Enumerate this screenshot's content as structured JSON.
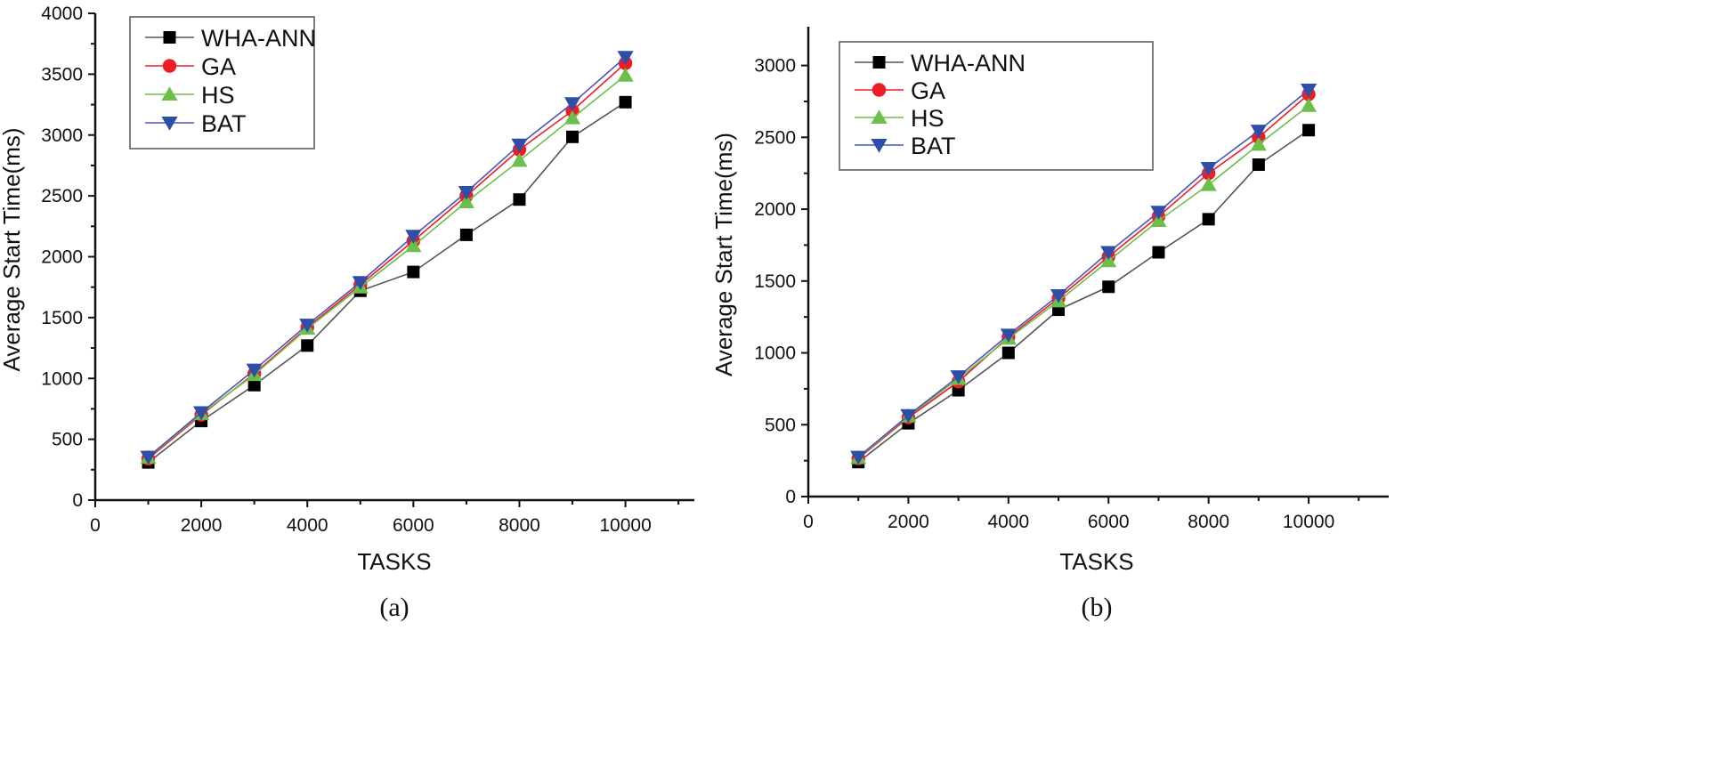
{
  "chart_data": [
    {
      "type": "line",
      "caption": "(a)",
      "xlabel": "TASKS",
      "ylabel": "Average Start Time(ms)",
      "xlim": [
        0,
        11300
      ],
      "ylim": [
        0,
        4000
      ],
      "xticks": [
        0,
        2000,
        4000,
        6000,
        8000,
        10000
      ],
      "yticks": [
        0,
        500,
        1000,
        1500,
        2000,
        2500,
        3000,
        3500,
        4000
      ],
      "legend_position": "top-left",
      "grid": false,
      "x": [
        1000,
        2000,
        3000,
        4000,
        5000,
        6000,
        7000,
        8000,
        9000,
        10000
      ],
      "series": [
        {
          "name": "WHA-ANN",
          "marker": "square",
          "color": "#000000",
          "line_color": "#555555",
          "values": [
            310,
            650,
            945,
            1270,
            1720,
            1875,
            2180,
            2470,
            2985,
            3270
          ]
        },
        {
          "name": "GA",
          "marker": "circle",
          "color": "#ee1c25",
          "line_color": "#ee1c25",
          "values": [
            340,
            700,
            1040,
            1420,
            1770,
            2130,
            2500,
            2880,
            3200,
            3590
          ]
        },
        {
          "name": "HS",
          "marker": "triangle-up",
          "color": "#6cbf4a",
          "line_color": "#6cbf4a",
          "values": [
            350,
            710,
            1030,
            1410,
            1750,
            2090,
            2450,
            2790,
            3140,
            3490
          ]
        },
        {
          "name": "BAT",
          "marker": "triangle-down",
          "color": "#2e4fa8",
          "line_color": "#4a55b8",
          "values": [
            355,
            720,
            1070,
            1440,
            1790,
            2170,
            2530,
            2920,
            3260,
            3640
          ]
        }
      ]
    },
    {
      "type": "line",
      "caption": "(b)",
      "xlabel": "TASKS",
      "ylabel": "Average Start Time(ms)",
      "xlim": [
        0,
        11600
      ],
      "ylim": [
        0,
        3270
      ],
      "xticks": [
        0,
        2000,
        4000,
        6000,
        8000,
        10000
      ],
      "yticks": [
        0,
        500,
        1000,
        1500,
        2000,
        2500,
        3000
      ],
      "legend_position": "top-left",
      "grid": false,
      "x": [
        1000,
        2000,
        3000,
        4000,
        5000,
        6000,
        7000,
        8000,
        9000,
        10000
      ],
      "series": [
        {
          "name": "WHA-ANN",
          "marker": "square",
          "color": "#000000",
          "line_color": "#555555",
          "values": [
            240,
            510,
            740,
            1000,
            1300,
            1460,
            1700,
            1930,
            2310,
            2550
          ]
        },
        {
          "name": "GA",
          "marker": "circle",
          "color": "#ee1c25",
          "line_color": "#ee1c25",
          "values": [
            265,
            550,
            800,
            1110,
            1380,
            1670,
            1950,
            2250,
            2500,
            2800
          ]
        },
        {
          "name": "HS",
          "marker": "triangle-up",
          "color": "#6cbf4a",
          "line_color": "#6cbf4a",
          "values": [
            270,
            560,
            820,
            1100,
            1360,
            1640,
            1920,
            2170,
            2450,
            2720
          ]
        },
        {
          "name": "BAT",
          "marker": "triangle-down",
          "color": "#2e4fa8",
          "line_color": "#4a55b8",
          "values": [
            275,
            565,
            835,
            1125,
            1400,
            1700,
            1980,
            2285,
            2545,
            2830
          ]
        }
      ]
    }
  ]
}
